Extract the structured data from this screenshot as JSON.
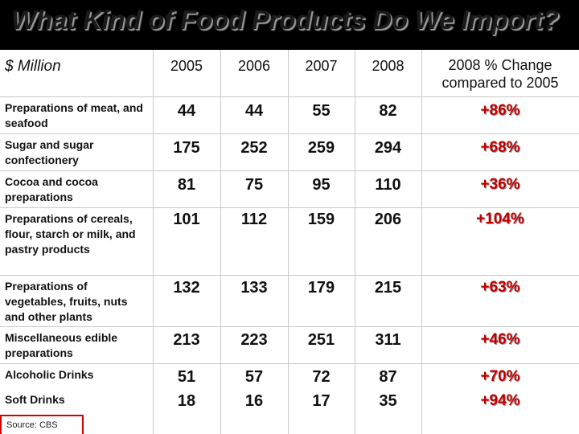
{
  "title": "What Kind of Food Products Do We Import?",
  "header": {
    "unit": "$ Million",
    "years": [
      "2005",
      "2006",
      "2007",
      "2008"
    ],
    "change_line1": "2008 % Change",
    "change_line2": "compared to 2005"
  },
  "rows": [
    {
      "label": "Preparations of meat, and seafood",
      "v2005": "44",
      "v2006": "44",
      "v2007": "55",
      "v2008": "82",
      "change": "+86%"
    },
    {
      "label": "Sugar and sugar confectionery",
      "v2005": "175",
      "v2006": "252",
      "v2007": "259",
      "v2008": "294",
      "change": "+68%"
    },
    {
      "label": "Cocoa and cocoa preparations",
      "v2005": "81",
      "v2006": "75",
      "v2007": "95",
      "v2008": "110",
      "change": "+36%"
    },
    {
      "label": "Preparations of cereals, flour, starch or milk, and pastry products",
      "v2005": "101",
      "v2006": "112",
      "v2007": "159",
      "v2008": "206",
      "change": "+104%"
    },
    {
      "label": "Preparations of vegetables, fruits, nuts and other plants",
      "v2005": "132",
      "v2006": "133",
      "v2007": "179",
      "v2008": "215",
      "change": "+63%"
    },
    {
      "label": "Miscellaneous edible preparations",
      "v2005": "213",
      "v2006": "223",
      "v2007": "251",
      "v2008": "311",
      "change": "+46%"
    },
    {
      "label": "Alcoholic Drinks",
      "v2005": "51",
      "v2006": "57",
      "v2007": "72",
      "v2008": "87",
      "change": "+70%"
    },
    {
      "label": "Soft Drinks",
      "v2005": "18",
      "v2006": "16",
      "v2007": "17",
      "v2008": "35",
      "change": "+94%"
    }
  ],
  "source": "Source: CBS",
  "colors": {
    "change_text": "#c00000",
    "background": "#000000",
    "sheet": "#ffffff"
  }
}
